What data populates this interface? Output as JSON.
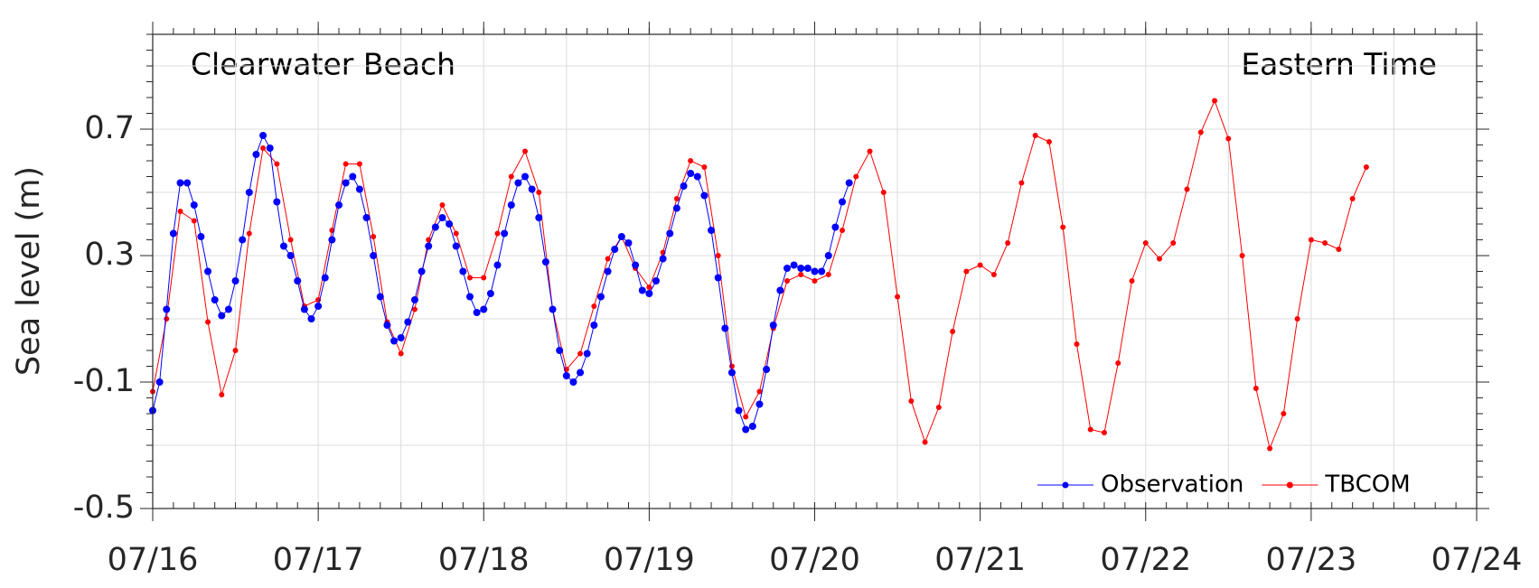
{
  "chart_data": {
    "type": "line",
    "title": "Clearwater Beach",
    "annotation": "Eastern Time",
    "ylabel": "Sea level (m)",
    "xlim": [
      0,
      192
    ],
    "xticks": [
      {
        "value": 0,
        "label": "07/16"
      },
      {
        "value": 24,
        "label": "07/17"
      },
      {
        "value": 48,
        "label": "07/18"
      },
      {
        "value": 72,
        "label": "07/19"
      },
      {
        "value": 96,
        "label": "07/20"
      },
      {
        "value": 120,
        "label": "07/21"
      },
      {
        "value": 144,
        "label": "07/22"
      },
      {
        "value": 168,
        "label": "07/23"
      },
      {
        "value": 192,
        "label": "07/24"
      }
    ],
    "xminor": [
      12,
      36,
      60,
      84,
      108,
      132,
      156,
      180
    ],
    "ylim": [
      -0.5,
      1.0
    ],
    "yticks": [
      -0.5,
      -0.1,
      0.3,
      0.7
    ],
    "yminor": [
      -0.3,
      0.1,
      0.5,
      0.9
    ],
    "grid": true,
    "legend": "lower right",
    "series": [
      {
        "name": "Observation",
        "color": "#0000ff",
        "x": [
          0,
          1,
          2,
          3,
          4,
          5,
          6,
          7,
          8,
          9,
          10,
          11,
          12,
          13,
          14,
          15,
          16,
          17,
          18,
          19,
          20,
          21,
          22,
          23,
          24,
          25,
          26,
          27,
          28,
          29,
          30,
          31,
          32,
          33,
          34,
          35,
          36,
          37,
          38,
          39,
          40,
          41,
          42,
          43,
          44,
          45,
          46,
          47,
          48,
          49,
          50,
          51,
          52,
          53,
          54,
          55,
          56,
          57,
          58,
          59,
          60,
          61,
          62,
          63,
          64,
          65,
          66,
          67,
          68,
          69,
          70,
          71,
          72,
          73,
          74,
          75,
          76,
          77,
          78,
          79,
          80,
          81,
          82,
          83,
          84,
          85,
          86,
          87,
          88,
          89,
          90,
          91,
          92,
          93,
          94,
          95,
          96,
          97,
          98,
          99,
          100,
          101
        ],
        "values": [
          -0.19,
          -0.1,
          0.13,
          0.37,
          0.53,
          0.53,
          0.46,
          0.36,
          0.25,
          0.16,
          0.11,
          0.13,
          0.22,
          0.35,
          0.5,
          0.62,
          0.68,
          0.64,
          0.47,
          0.33,
          0.3,
          0.22,
          0.13,
          0.1,
          0.14,
          0.23,
          0.35,
          0.46,
          0.53,
          0.55,
          0.51,
          0.42,
          0.3,
          0.17,
          0.08,
          0.03,
          0.04,
          0.09,
          0.16,
          0.25,
          0.33,
          0.39,
          0.42,
          0.4,
          0.33,
          0.25,
          0.17,
          0.12,
          0.13,
          0.18,
          0.27,
          0.37,
          0.46,
          0.53,
          0.55,
          0.51,
          0.42,
          0.28,
          0.13,
          0.0,
          -0.08,
          -0.1,
          -0.07,
          -0.01,
          0.08,
          0.17,
          0.25,
          0.32,
          0.36,
          0.34,
          0.27,
          0.19,
          0.18,
          0.22,
          0.29,
          0.37,
          0.45,
          0.52,
          0.56,
          0.55,
          0.49,
          0.38,
          0.23,
          0.07,
          -0.07,
          -0.19,
          -0.25,
          -0.24,
          -0.17,
          -0.06,
          0.08,
          0.19,
          0.26,
          0.27,
          0.26,
          0.26,
          0.25,
          0.25,
          0.3,
          0.39,
          0.47,
          0.53
        ]
      },
      {
        "name": "TBCOM",
        "color": "#ff0000",
        "x": [
          0,
          2,
          4,
          6,
          8,
          10,
          12,
          14,
          16,
          18,
          20,
          22,
          24,
          26,
          28,
          30,
          32,
          34,
          36,
          38,
          40,
          42,
          44,
          46,
          48,
          50,
          52,
          54,
          56,
          58,
          60,
          62,
          64,
          66,
          68,
          70,
          72,
          74,
          76,
          78,
          80,
          82,
          84,
          86,
          88,
          90,
          92,
          94,
          96,
          98,
          100,
          102,
          104,
          106,
          108,
          110,
          112,
          114,
          116,
          118,
          120,
          122,
          124,
          126,
          128,
          130,
          132,
          134,
          136,
          138,
          140,
          142,
          144,
          146,
          148,
          150,
          152,
          154,
          156,
          158,
          160,
          162,
          164,
          166,
          168,
          170,
          172,
          174,
          176
        ],
        "values": [
          -0.13,
          0.1,
          0.44,
          0.41,
          0.09,
          -0.14,
          0.0,
          0.37,
          0.64,
          0.59,
          0.35,
          0.14,
          0.16,
          0.38,
          0.59,
          0.59,
          0.36,
          0.09,
          -0.01,
          0.13,
          0.35,
          0.46,
          0.37,
          0.23,
          0.23,
          0.37,
          0.55,
          0.63,
          0.5,
          0.13,
          -0.06,
          -0.01,
          0.14,
          0.29,
          0.36,
          0.26,
          0.2,
          0.31,
          0.48,
          0.6,
          0.58,
          0.3,
          -0.05,
          -0.21,
          -0.13,
          0.07,
          0.22,
          0.24,
          0.22,
          0.24,
          0.38,
          0.55,
          0.63,
          0.5,
          0.17,
          -0.16,
          -0.29,
          -0.18,
          0.06,
          0.25,
          0.27,
          0.24,
          0.34,
          0.53,
          0.68,
          0.66,
          0.39,
          0.02,
          -0.25,
          -0.26,
          -0.04,
          0.22,
          0.34,
          0.29,
          0.34,
          0.51,
          0.69,
          0.79,
          0.67,
          0.3,
          -0.12,
          -0.31,
          -0.2,
          0.1,
          0.35,
          0.34,
          0.32,
          0.48,
          0.58
        ]
      }
    ]
  }
}
